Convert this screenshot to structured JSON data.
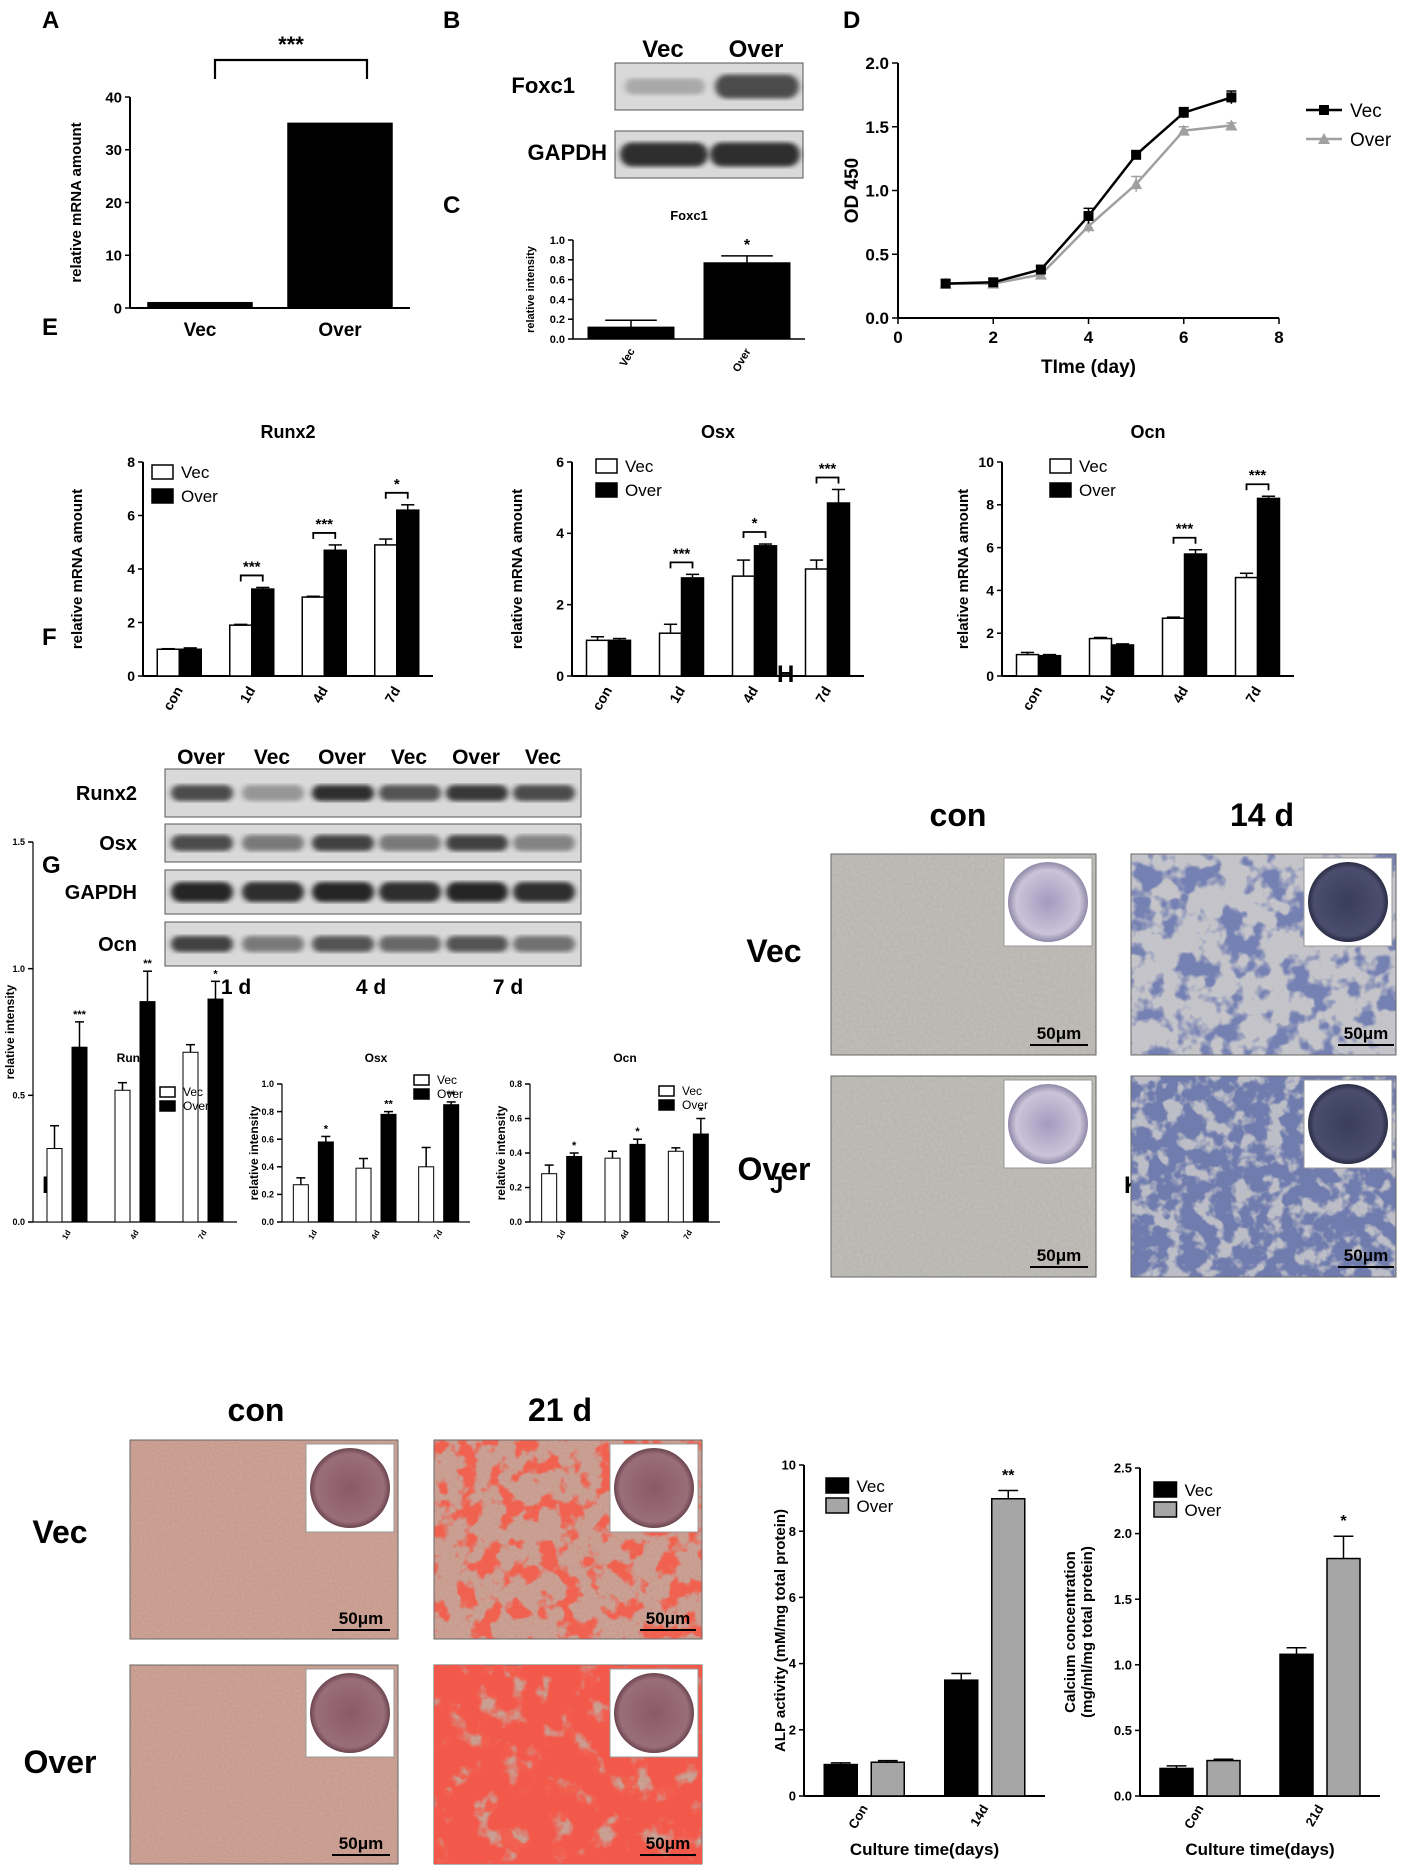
{
  "panels": {
    "A": "A",
    "B": "B",
    "C": "C",
    "D": "D",
    "E": "E",
    "F": "F",
    "G": "G",
    "H": "H",
    "I": "I",
    "J": "J",
    "K": "K"
  },
  "colors": {
    "vec": "#000000",
    "over_dark": "#000000",
    "over_gray": "#a6a6a6",
    "line_gray": "#a0a0a0"
  },
  "blot_B": {
    "lanes": [
      "Vec",
      "Over"
    ],
    "rows": [
      "Foxc1",
      "GAPDH"
    ]
  },
  "blot_F": {
    "lanes": [
      "Over",
      "Vec",
      "Over",
      "Vec",
      "Over",
      "Vec"
    ],
    "rows": [
      "Runx2",
      "Osx",
      "GAPDH",
      "Ocn"
    ],
    "times": [
      "1 d",
      "4 d",
      "7 d"
    ]
  },
  "image_H": {
    "cols": [
      "con",
      "14 d"
    ],
    "rows": [
      "Vec",
      "Over"
    ],
    "scale": "50μm"
  },
  "image_I": {
    "cols": [
      "con",
      "21 d"
    ],
    "rows": [
      "Vec",
      "Over"
    ],
    "scale": "50μm"
  },
  "chart_data": [
    {
      "id": "A",
      "type": "bar",
      "categories": [
        "Vec",
        "Over"
      ],
      "values": [
        1,
        35
      ],
      "ylabel": "relative mRNA amount",
      "ylim": [
        0,
        40
      ],
      "yticks": [
        0,
        10,
        20,
        30,
        40
      ],
      "significance": "***"
    },
    {
      "id": "C",
      "type": "bar",
      "title": "Foxc1",
      "categories": [
        "Vec",
        "Over"
      ],
      "values": [
        0.12,
        0.77
      ],
      "errors": [
        0.07,
        0.07
      ],
      "ylabel": "relative intensity",
      "ylim": [
        0,
        1.0
      ],
      "yticks": [
        "0.0",
        "0.2",
        "0.4",
        "0.6",
        "0.8",
        "1.0"
      ],
      "significance": [
        "",
        "*"
      ]
    },
    {
      "id": "D",
      "type": "line",
      "xlabel": "TIme (day)",
      "ylabel": "OD 450",
      "xlim": [
        0,
        8
      ],
      "ylim": [
        0,
        2.0
      ],
      "xticks": [
        0,
        2,
        4,
        6,
        8
      ],
      "yticks": [
        "0.0",
        "0.5",
        "1.0",
        "1.5",
        "2.0"
      ],
      "legend": "right",
      "series": [
        {
          "name": "Vec",
          "x": [
            1,
            2,
            3,
            4,
            5,
            6,
            7
          ],
          "y": [
            0.27,
            0.28,
            0.38,
            0.8,
            1.28,
            1.61,
            1.73
          ],
          "errors": [
            0.03,
            0.03,
            0.03,
            0.06,
            0.02,
            0.04,
            0.05
          ]
        },
        {
          "name": "Over",
          "x": [
            1,
            2,
            3,
            4,
            5,
            6,
            7
          ],
          "y": [
            0.27,
            0.27,
            0.34,
            0.72,
            1.05,
            1.47,
            1.51
          ],
          "errors": [
            0.03,
            0.03,
            0.03,
            0.05,
            0.06,
            0.03,
            0.02
          ]
        }
      ]
    },
    {
      "id": "E1",
      "type": "bar",
      "title": "Runx2",
      "categories": [
        "con",
        "1d",
        "4d",
        "7d"
      ],
      "ylabel": "relative mRNA amount",
      "ylim": [
        0,
        8
      ],
      "yticks": [
        0,
        2,
        4,
        6,
        8
      ],
      "legend": "top-left",
      "series": [
        {
          "name": "Vec",
          "values": [
            1.0,
            1.9,
            2.95,
            4.9
          ],
          "errors": [
            0.02,
            0.03,
            0.03,
            0.22
          ]
        },
        {
          "name": "Over",
          "values": [
            1.0,
            3.25,
            4.7,
            6.2
          ],
          "errors": [
            0.05,
            0.06,
            0.2,
            0.2
          ]
        }
      ],
      "significance": [
        "",
        "***",
        "***",
        "*"
      ]
    },
    {
      "id": "E2",
      "type": "bar",
      "title": "Osx",
      "categories": [
        "con",
        "1d",
        "4d",
        "7d"
      ],
      "ylabel": "relative mRNA amount",
      "ylim": [
        0,
        6
      ],
      "yticks": [
        0,
        2,
        4,
        6
      ],
      "legend": "top-left",
      "series": [
        {
          "name": "Vec",
          "values": [
            1.0,
            1.2,
            2.8,
            3.0
          ],
          "errors": [
            0.1,
            0.25,
            0.45,
            0.25
          ]
        },
        {
          "name": "Over",
          "values": [
            1.0,
            2.75,
            3.65,
            4.85
          ],
          "errors": [
            0.05,
            0.1,
            0.05,
            0.38
          ]
        }
      ],
      "significance": [
        "",
        "***",
        "*",
        "***"
      ]
    },
    {
      "id": "E3",
      "type": "bar",
      "title": "Ocn",
      "categories": [
        "con",
        "1d",
        "4d",
        "7d"
      ],
      "ylabel": "relative mRNA amount",
      "ylim": [
        0,
        10
      ],
      "yticks": [
        0,
        2,
        4,
        6,
        8,
        10
      ],
      "legend": "top-left",
      "series": [
        {
          "name": "Vec",
          "values": [
            1.0,
            1.75,
            2.7,
            4.6
          ],
          "errors": [
            0.1,
            0.05,
            0.05,
            0.2
          ]
        },
        {
          "name": "Over",
          "values": [
            0.95,
            1.45,
            5.7,
            8.3
          ],
          "errors": [
            0.05,
            0.05,
            0.2,
            0.1
          ]
        }
      ],
      "significance": [
        "",
        "",
        "***",
        "***"
      ]
    },
    {
      "id": "G1",
      "type": "bar",
      "title": "Runx2",
      "categories": [
        "1d",
        "4d",
        "7d"
      ],
      "ylabel": "relative intensity",
      "ylim": [
        0,
        1.5
      ],
      "yticks": [
        "0.0",
        "0.5",
        "1.0",
        "1.5"
      ],
      "legend": "top-right",
      "series": [
        {
          "name": "Vec",
          "values": [
            0.29,
            0.52,
            0.67
          ],
          "errors": [
            0.09,
            0.03,
            0.03
          ]
        },
        {
          "name": "Over",
          "values": [
            0.69,
            0.87,
            0.88
          ],
          "errors": [
            0.1,
            0.12,
            0.07
          ]
        }
      ],
      "significance": [
        "***",
        "**",
        "*"
      ]
    },
    {
      "id": "G2",
      "type": "bar",
      "title": "Osx",
      "categories": [
        "1d",
        "4d",
        "7d"
      ],
      "ylabel": "relative intensity",
      "ylim": [
        0,
        1.0
      ],
      "yticks": [
        "0.0",
        "0.2",
        "0.4",
        "0.6",
        "0.8",
        "1.0"
      ],
      "legend": "top-right",
      "series": [
        {
          "name": "Vec",
          "values": [
            0.27,
            0.39,
            0.4
          ],
          "errors": [
            0.05,
            0.07,
            0.14
          ]
        },
        {
          "name": "Over",
          "values": [
            0.58,
            0.78,
            0.85
          ],
          "errors": [
            0.04,
            0.02,
            0.02
          ]
        }
      ],
      "significance": [
        "*",
        "**",
        "**"
      ]
    },
    {
      "id": "G3",
      "type": "bar",
      "title": "Ocn",
      "categories": [
        "1d",
        "4d",
        "7d"
      ],
      "ylabel": "relative intensity",
      "ylim": [
        0,
        0.8
      ],
      "yticks": [
        "0.0",
        "0.2",
        "0.4",
        "0.6",
        "0.8"
      ],
      "legend": "top-right",
      "series": [
        {
          "name": "Vec",
          "values": [
            0.28,
            0.37,
            0.41
          ],
          "errors": [
            0.05,
            0.04,
            0.02
          ]
        },
        {
          "name": "Over",
          "values": [
            0.38,
            0.45,
            0.51
          ],
          "errors": [
            0.02,
            0.03,
            0.09
          ]
        }
      ],
      "significance": [
        "*",
        "*",
        "*"
      ]
    },
    {
      "id": "J",
      "type": "bar",
      "categories": [
        "Con",
        "14d"
      ],
      "xlabel": "Culture time(days)",
      "ylabel": "ALP activity (mM/mg total protein)",
      "ylim": [
        0,
        10
      ],
      "yticks": [
        0,
        2,
        4,
        6,
        8,
        10
      ],
      "legend": "top-left",
      "series": [
        {
          "name": "Vec",
          "values": [
            0.95,
            3.5
          ],
          "errors": [
            0.05,
            0.2
          ]
        },
        {
          "name": "Over",
          "values": [
            1.02,
            8.98
          ],
          "errors": [
            0.05,
            0.25
          ]
        }
      ],
      "significance": [
        "",
        "**"
      ]
    },
    {
      "id": "K",
      "type": "bar",
      "categories": [
        "Con",
        "21d"
      ],
      "xlabel": "Culture time(days)",
      "ylabel": "Calcium concentration (mg/ml/mg total protein)",
      "ylabel_lines": [
        "Calcium concentration",
        "(mg/ml/mg total protein)"
      ],
      "ylim": [
        0,
        2.5
      ],
      "yticks": [
        "0.0",
        "0.5",
        "1.0",
        "1.5",
        "2.0",
        "2.5"
      ],
      "legend": "top-left",
      "series": [
        {
          "name": "Vec",
          "values": [
            0.21,
            1.08
          ],
          "errors": [
            0.02,
            0.05
          ]
        },
        {
          "name": "Over",
          "values": [
            0.27,
            1.81
          ],
          "errors": [
            0.01,
            0.17
          ]
        }
      ],
      "significance": [
        "",
        "*"
      ]
    }
  ]
}
